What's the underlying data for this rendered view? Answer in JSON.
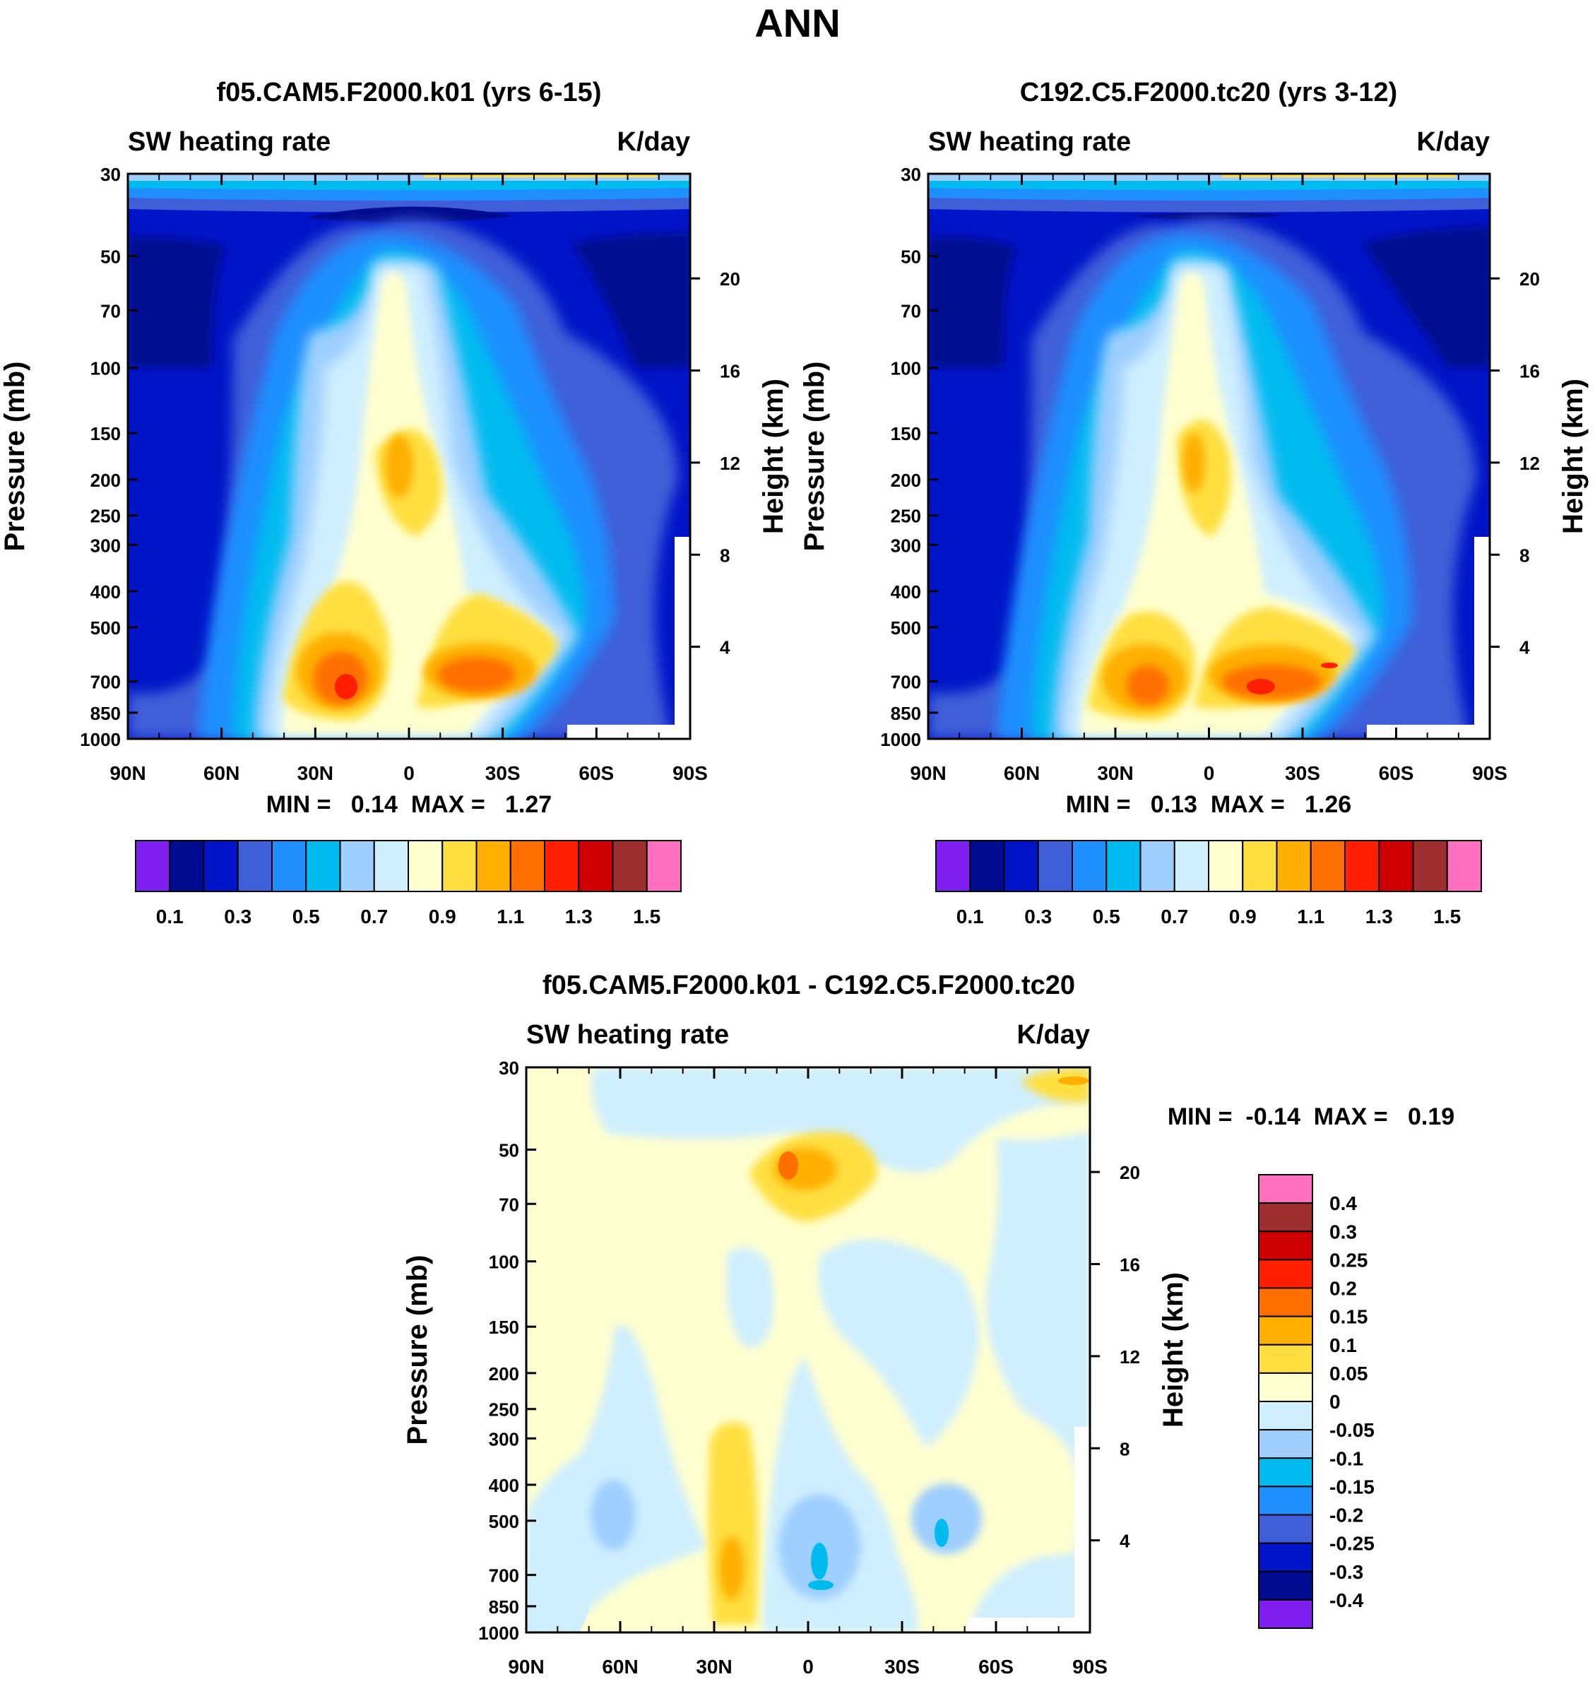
{
  "figure_title": "ANN",
  "colors": {
    "field_scale": [
      "#7f1fef",
      "#000c8f",
      "#0015c7",
      "#3f5fd9",
      "#1f8fff",
      "#00bbef",
      "#9fcfff",
      "#cfefff",
      "#ffffcf",
      "#ffdf3f",
      "#ffaf00",
      "#ff6f00",
      "#ff1f00",
      "#cf0000",
      "#9f2f2f",
      "#ff6fbf"
    ],
    "diff_scale": [
      "#7f1fef",
      "#000c8f",
      "#0015c7",
      "#3f5fd9",
      "#1f8fff",
      "#00bbef",
      "#9fcfff",
      "#cfefff",
      "#ffffcf",
      "#ffdf3f",
      "#ffaf00",
      "#ff6f00",
      "#ff1f00",
      "#cf0000",
      "#9f2f2f",
      "#ff6fbf"
    ]
  },
  "chart_data": [
    {
      "type": "heatmap",
      "id": "panel1",
      "title": "f05.CAM5.F2000.k01 (yrs 6-15)",
      "left_label": "SW heating rate",
      "right_label": "K/day",
      "ylabel": "Pressure (mb)",
      "ylabel_right": "Height (km)",
      "xticks": [
        "90N",
        "60N",
        "30N",
        "0",
        "30S",
        "60S",
        "90S"
      ],
      "yticks": [
        "30",
        "50",
        "70",
        "100",
        "150",
        "200",
        "250",
        "300",
        "400",
        "500",
        "700",
        "850",
        "1000"
      ],
      "yticks_right": [
        "20",
        "16",
        "12",
        "8",
        "4"
      ],
      "stats_text": "MIN =   0.14  MAX =   1.27",
      "levels": [
        0.1,
        0.2,
        0.3,
        0.4,
        0.5,
        0.6,
        0.7,
        0.8,
        0.9,
        1.0,
        1.1,
        1.2,
        1.3,
        1.4,
        1.5
      ],
      "colorbar_labels": [
        "0.1",
        "0.3",
        "0.5",
        "0.7",
        "0.9",
        "1.1",
        "1.3",
        "1.5"
      ],
      "ylim": [
        1000,
        30
      ]
    },
    {
      "type": "heatmap",
      "id": "panel2",
      "title": "C192.C5.F2000.tc20 (yrs 3-12)",
      "left_label": "SW heating rate",
      "right_label": "K/day",
      "ylabel": "Pressure (mb)",
      "ylabel_right": "Height (km)",
      "xticks": [
        "90N",
        "60N",
        "30N",
        "0",
        "30S",
        "60S",
        "90S"
      ],
      "yticks": [
        "30",
        "50",
        "70",
        "100",
        "150",
        "200",
        "250",
        "300",
        "400",
        "500",
        "700",
        "850",
        "1000"
      ],
      "yticks_right": [
        "20",
        "16",
        "12",
        "8",
        "4"
      ],
      "stats_text": "MIN =   0.13  MAX =   1.26",
      "levels": [
        0.1,
        0.2,
        0.3,
        0.4,
        0.5,
        0.6,
        0.7,
        0.8,
        0.9,
        1.0,
        1.1,
        1.2,
        1.3,
        1.4,
        1.5
      ],
      "colorbar_labels": [
        "0.1",
        "0.3",
        "0.5",
        "0.7",
        "0.9",
        "1.1",
        "1.3",
        "1.5"
      ],
      "ylim": [
        1000,
        30
      ]
    },
    {
      "type": "heatmap",
      "id": "panel3",
      "title": "f05.CAM5.F2000.k01 - C192.C5.F2000.tc20",
      "left_label": "SW heating rate",
      "right_label": "K/day",
      "ylabel": "Pressure (mb)",
      "ylabel_right": "Height (km)",
      "xticks": [
        "90N",
        "60N",
        "30N",
        "0",
        "30S",
        "60S",
        "90S"
      ],
      "yticks": [
        "30",
        "50",
        "70",
        "100",
        "150",
        "200",
        "250",
        "300",
        "400",
        "500",
        "700",
        "850",
        "1000"
      ],
      "yticks_right": [
        "20",
        "16",
        "12",
        "8",
        "4"
      ],
      "stats_text": "MIN =  -0.14  MAX =   0.19",
      "levels": [
        -0.4,
        -0.3,
        -0.25,
        -0.2,
        -0.15,
        -0.1,
        -0.05,
        0,
        0.05,
        0.1,
        0.15,
        0.2,
        0.25,
        0.3,
        0.4
      ],
      "colorbar_labels": [
        "0.4",
        "0.3",
        "0.25",
        "0.2",
        "0.15",
        "0.1",
        "0.05",
        "0",
        "-0.05",
        "-0.1",
        "-0.15",
        "-0.2",
        "-0.25",
        "-0.3",
        "-0.4"
      ],
      "ylim": [
        1000,
        30
      ]
    }
  ]
}
